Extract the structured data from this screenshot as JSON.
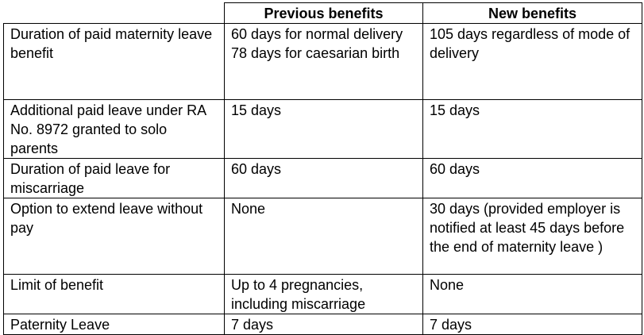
{
  "table": {
    "headers": [
      "",
      "Previous benefits",
      "New benefits"
    ],
    "rows": [
      {
        "label": "Duration of paid maternity leave benefit",
        "previous": [
          "60 days for normal delivery",
          "78 days for caesarian birth"
        ],
        "new": "105 days regardless of mode of delivery"
      },
      {
        "label": "Additional paid leave under RA No. 8972 granted to solo parents",
        "previous": [
          "15 days"
        ],
        "new": "15 days"
      },
      {
        "label": "Duration of paid leave for miscarriage",
        "previous": [
          "60 days"
        ],
        "new": "60 days"
      },
      {
        "label": "Option to extend leave without pay",
        "previous": [
          "None"
        ],
        "new": "30 days (provided employer is notified at least 45 days before the end of maternity leave )"
      },
      {
        "label": "Limit of benefit",
        "previous": [
          "Up to 4 pregnancies, including miscarriage"
        ],
        "new": "None"
      },
      {
        "label": "Paternity Leave",
        "previous": [
          "7 days"
        ],
        "new": "7 days"
      }
    ]
  }
}
